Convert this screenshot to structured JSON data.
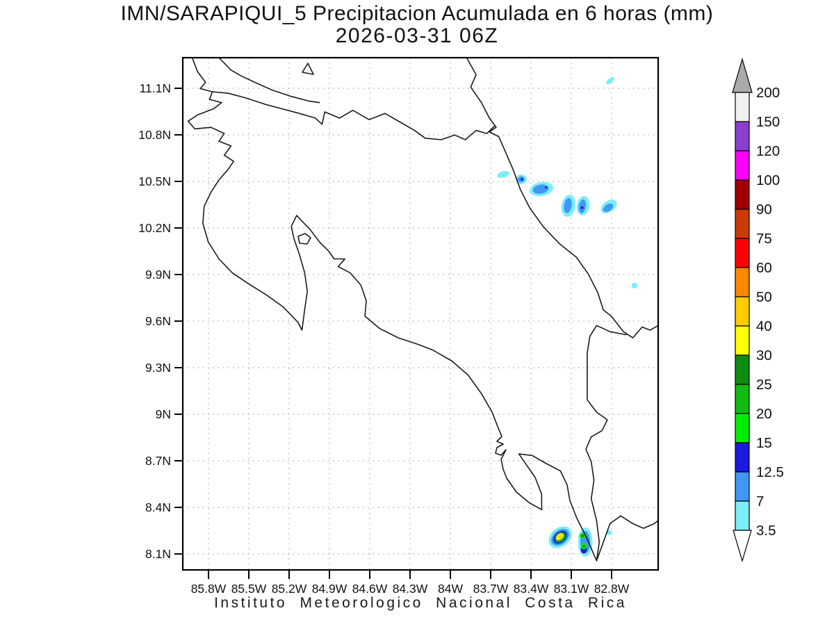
{
  "title": {
    "line1": "IMN/SARAPIQUI_5 Precipitacion Acumulada en 6 horas (mm)",
    "line2": "2026-03-31 06Z"
  },
  "caption": "Instituto Meteorologico Nacional Costa Rica",
  "axes": {
    "lat_labels": [
      "11.1N",
      "10.8N",
      "10.5N",
      "10.2N",
      "9.9N",
      "9.6N",
      "9.3N",
      "9N",
      "8.7N",
      "8.4N",
      "8.1N"
    ],
    "lon_labels": [
      "85.8W",
      "85.5W",
      "85.2W",
      "84.9W",
      "84.6W",
      "84.3W",
      "84W",
      "83.7W",
      "83.4W",
      "83.1W",
      "82.8W"
    ]
  },
  "colorbar": {
    "levels": [
      "200",
      "150",
      "120",
      "100",
      "90",
      "75",
      "60",
      "50",
      "40",
      "30",
      "25",
      "20",
      "15",
      "12.5",
      "7",
      "3.5"
    ],
    "colors": [
      "#f0f0f0",
      "#8b3fd1",
      "#ff00ff",
      "#a00000",
      "#cc3a00",
      "#ff0000",
      "#ff8800",
      "#ffcc00",
      "#ffff00",
      "#0e8c0e",
      "#11bb11",
      "#00ee00",
      "#1a1ae0",
      "#4197f5",
      "#7beef5"
    ],
    "over_arrow_color": "#aaaaaa",
    "under_arrow_color": "#ffffff"
  },
  "map": {
    "region": "Costa Rica",
    "coast_color": "#1a1a1a",
    "grid_color": "#b8b8b8",
    "background": "#ffffff"
  },
  "chart_data": {
    "type": "heatmap",
    "title": "IMN/SARAPIQUI_5 Precipitacion Acumulada en 6 horas (mm)",
    "valid_time": "2026-03-31 06Z",
    "units": "mm",
    "lat_ticks": [
      8.1,
      8.4,
      8.7,
      9.0,
      9.3,
      9.6,
      9.9,
      10.2,
      10.5,
      10.8,
      11.1
    ],
    "lon_ticks_west": [
      85.8,
      85.5,
      85.2,
      84.9,
      84.6,
      84.3,
      84.0,
      83.7,
      83.4,
      83.1,
      82.8
    ],
    "shade_levels_mm": [
      3.5,
      7,
      12.5,
      15,
      20,
      25,
      30,
      40,
      50,
      60,
      75,
      90,
      100,
      120,
      150,
      200
    ],
    "grid": "dotted",
    "legend_position": "right",
    "precip_cells": [
      {
        "lat": "10.52N",
        "lon": "83.63W",
        "peak_mm": "3.5-7"
      },
      {
        "lat": "10.50N",
        "lon": "83.46W",
        "peak_mm": "12.5-15"
      },
      {
        "lat": "10.44N",
        "lon": "83.32W",
        "peak_mm": "12.5-15"
      },
      {
        "lat": "10.34N",
        "lon": "83.13W",
        "peak_mm": "7-12.5"
      },
      {
        "lat": "10.33N",
        "lon": "83.02W",
        "peak_mm": "12.5-15"
      },
      {
        "lat": "10.32N",
        "lon": "82.82W",
        "peak_mm": "7-12.5"
      },
      {
        "lat": "11.13N",
        "lon": "82.80W",
        "peak_mm": "3.5-7"
      },
      {
        "lat": "9.82N",
        "lon": "82.62W",
        "peak_mm": "3.5-7"
      },
      {
        "lat": "8.19N",
        "lon": "83.17W",
        "peak_mm": "40-50"
      },
      {
        "lat": "8.15N",
        "lon": "82.98W",
        "peak_mm": "25-30"
      },
      {
        "lat": "8.23N",
        "lon": "82.81W",
        "peak_mm": "3.5-7"
      }
    ]
  }
}
